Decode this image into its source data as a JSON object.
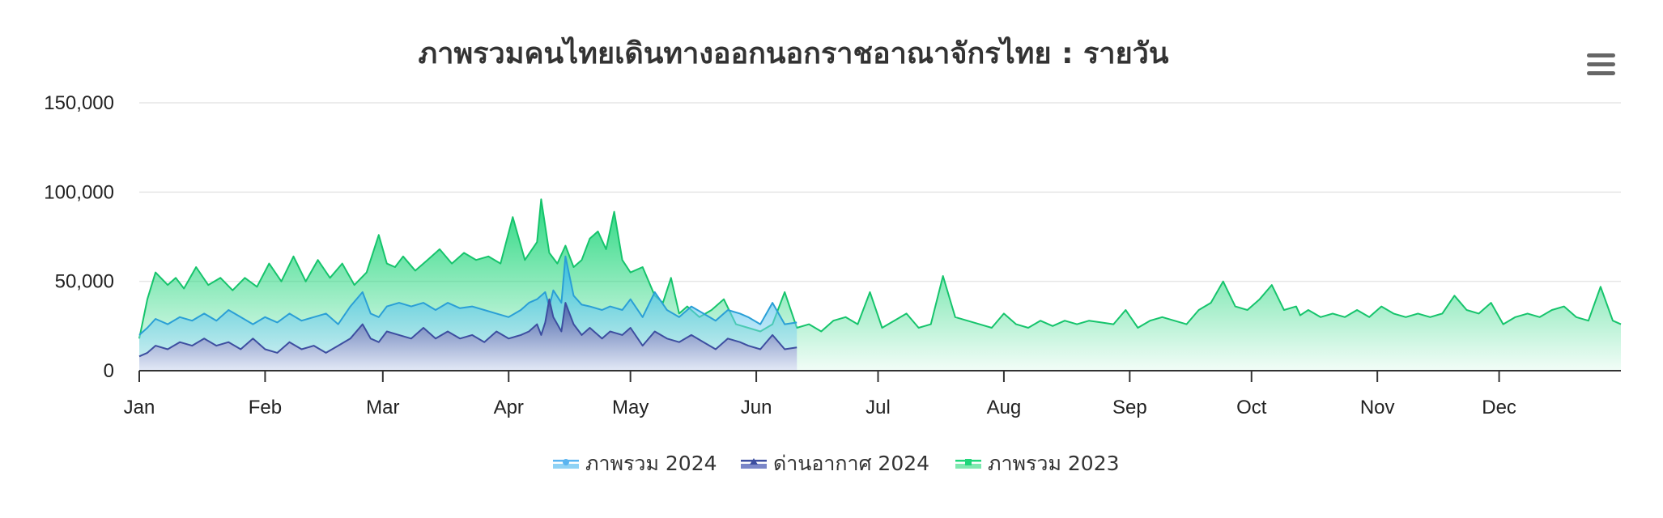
{
  "chart_data": {
    "type": "area",
    "title": "ภาพรวมคนไทยเดินทางออกนอกราชอาณาจักรไทย : รายวัน",
    "xlabel": "",
    "ylabel": "",
    "ylim": [
      0,
      150000
    ],
    "y_ticks": [
      0,
      50000,
      100000,
      150000
    ],
    "y_tick_labels": [
      "0",
      "50,000",
      "100,000",
      "150,000"
    ],
    "x_range_days": [
      1,
      366
    ],
    "x_tick_days": [
      1,
      32,
      61,
      92,
      122,
      153,
      183,
      214,
      245,
      275,
      306,
      336
    ],
    "x_tick_labels": [
      "Jan",
      "Feb",
      "Mar",
      "Apr",
      "May",
      "Jun",
      "Jul",
      "Aug",
      "Sep",
      "Oct",
      "Nov",
      "Dec"
    ],
    "grid": true,
    "legend_position": "bottom",
    "series": [
      {
        "name": "ภาพรวม 2023",
        "color": "#1fd67a",
        "x_day": [
          1,
          3,
          5,
          8,
          10,
          12,
          15,
          18,
          21,
          24,
          27,
          30,
          33,
          36,
          39,
          42,
          45,
          48,
          51,
          54,
          57,
          60,
          62,
          64,
          66,
          69,
          72,
          75,
          78,
          81,
          84,
          87,
          90,
          93,
          96,
          99,
          100,
          102,
          104,
          106,
          108,
          110,
          112,
          114,
          116,
          118,
          120,
          122,
          125,
          128,
          130,
          132,
          134,
          136,
          139,
          142,
          145,
          148,
          151,
          154,
          157,
          160,
          163,
          166,
          169,
          172,
          175,
          178,
          181,
          184,
          187,
          190,
          193,
          196,
          199,
          202,
          205,
          208,
          211,
          214,
          217,
          220,
          223,
          226,
          229,
          232,
          235,
          238,
          241,
          244,
          247,
          250,
          253,
          256,
          259,
          262,
          265,
          268,
          271,
          274,
          277,
          280,
          283,
          286,
          287,
          289,
          292,
          295,
          298,
          301,
          304,
          307,
          310,
          313,
          316,
          319,
          322,
          325,
          328,
          331,
          334,
          337,
          340,
          343,
          346,
          349,
          352,
          355,
          358,
          361,
          364,
          366
        ],
        "values": [
          18000,
          40000,
          55000,
          48000,
          52000,
          46000,
          58000,
          48000,
          52000,
          45000,
          52000,
          47000,
          60000,
          50000,
          64000,
          50000,
          62000,
          52000,
          60000,
          48000,
          55000,
          76000,
          60000,
          58000,
          64000,
          56000,
          62000,
          68000,
          60000,
          66000,
          62000,
          64000,
          60000,
          86000,
          62000,
          72000,
          96000,
          66000,
          60000,
          70000,
          58000,
          62000,
          74000,
          78000,
          68000,
          89000,
          62000,
          55000,
          58000,
          42000,
          38000,
          52000,
          32000,
          36000,
          30000,
          34000,
          40000,
          26000,
          24000,
          22000,
          26000,
          44000,
          24000,
          26000,
          22000,
          28000,
          30000,
          26000,
          44000,
          24000,
          28000,
          32000,
          24000,
          26000,
          53000,
          30000,
          28000,
          26000,
          24000,
          32000,
          26000,
          24000,
          28000,
          25000,
          28000,
          26000,
          28000,
          27000,
          26000,
          34000,
          24000,
          28000,
          30000,
          28000,
          26000,
          34000,
          38000,
          50000,
          36000,
          34000,
          40000,
          48000,
          34000,
          36000,
          31000,
          34000,
          30000,
          32000,
          30000,
          34000,
          30000,
          36000,
          32000,
          30000,
          32000,
          30000,
          32000,
          42000,
          34000,
          32000,
          38000,
          26000,
          30000,
          32000,
          30000,
          34000,
          36000,
          30000,
          28000,
          47000,
          28000,
          26000
        ]
      },
      {
        "name": "ภาพรวม 2024",
        "color": "#5ab4f0",
        "x_day": [
          1,
          3,
          5,
          8,
          11,
          14,
          17,
          20,
          23,
          26,
          29,
          32,
          35,
          38,
          41,
          44,
          47,
          50,
          53,
          56,
          58,
          60,
          62,
          65,
          68,
          71,
          74,
          77,
          80,
          83,
          86,
          89,
          92,
          95,
          97,
          99,
          101,
          102,
          103,
          105,
          106,
          108,
          110,
          112,
          115,
          117,
          120,
          122,
          125,
          128,
          131,
          134,
          137,
          140,
          143,
          146,
          149,
          151,
          154,
          157,
          160,
          163
        ],
        "values": [
          20000,
          24000,
          29000,
          26000,
          30000,
          28000,
          32000,
          28000,
          34000,
          30000,
          26000,
          30000,
          27000,
          32000,
          28000,
          30000,
          32000,
          26000,
          36000,
          44000,
          32000,
          30000,
          36000,
          38000,
          36000,
          38000,
          34000,
          38000,
          35000,
          36000,
          34000,
          32000,
          30000,
          34000,
          38000,
          40000,
          44000,
          36000,
          45000,
          38000,
          64000,
          42000,
          37000,
          36000,
          34000,
          36000,
          34000,
          40000,
          30000,
          44000,
          34000,
          30000,
          36000,
          32000,
          28000,
          34000,
          32000,
          30000,
          26000,
          38000,
          26000,
          27000
        ]
      },
      {
        "name": "ด่านอากาศ 2024",
        "color": "#3d4ea0",
        "x_day": [
          1,
          3,
          5,
          8,
          11,
          14,
          17,
          20,
          23,
          26,
          29,
          32,
          35,
          38,
          41,
          44,
          47,
          50,
          53,
          56,
          58,
          60,
          62,
          65,
          68,
          71,
          74,
          77,
          80,
          83,
          86,
          89,
          92,
          95,
          97,
          99,
          100,
          101,
          102,
          103,
          105,
          106,
          108,
          110,
          112,
          115,
          117,
          120,
          122,
          125,
          128,
          131,
          134,
          137,
          140,
          143,
          146,
          149,
          151,
          154,
          157,
          160,
          163
        ],
        "values": [
          8000,
          10000,
          14000,
          12000,
          16000,
          14000,
          18000,
          14000,
          16000,
          12000,
          18000,
          12000,
          10000,
          16000,
          12000,
          14000,
          10000,
          14000,
          18000,
          26000,
          18000,
          16000,
          22000,
          20000,
          18000,
          24000,
          18000,
          22000,
          18000,
          20000,
          16000,
          22000,
          18000,
          20000,
          22000,
          26000,
          20000,
          27000,
          40000,
          30000,
          22000,
          38000,
          26000,
          20000,
          24000,
          18000,
          22000,
          20000,
          24000,
          14000,
          22000,
          18000,
          16000,
          20000,
          16000,
          12000,
          18000,
          16000,
          14000,
          12000,
          20000,
          12000,
          13000
        ]
      }
    ]
  },
  "chart": {
    "menu_icon": "hamburger-menu-icon",
    "legend": [
      {
        "label": "ภาพรวม 2024",
        "color": "#5ab4f0",
        "icon": "area-series-marker-icon"
      },
      {
        "label": "ด่านอากาศ 2024",
        "color": "#3d4ea0",
        "icon": "area-series-marker-icon"
      },
      {
        "label": "ภาพรวม 2023",
        "color": "#1fd67a",
        "icon": "area-series-marker-icon"
      }
    ]
  }
}
